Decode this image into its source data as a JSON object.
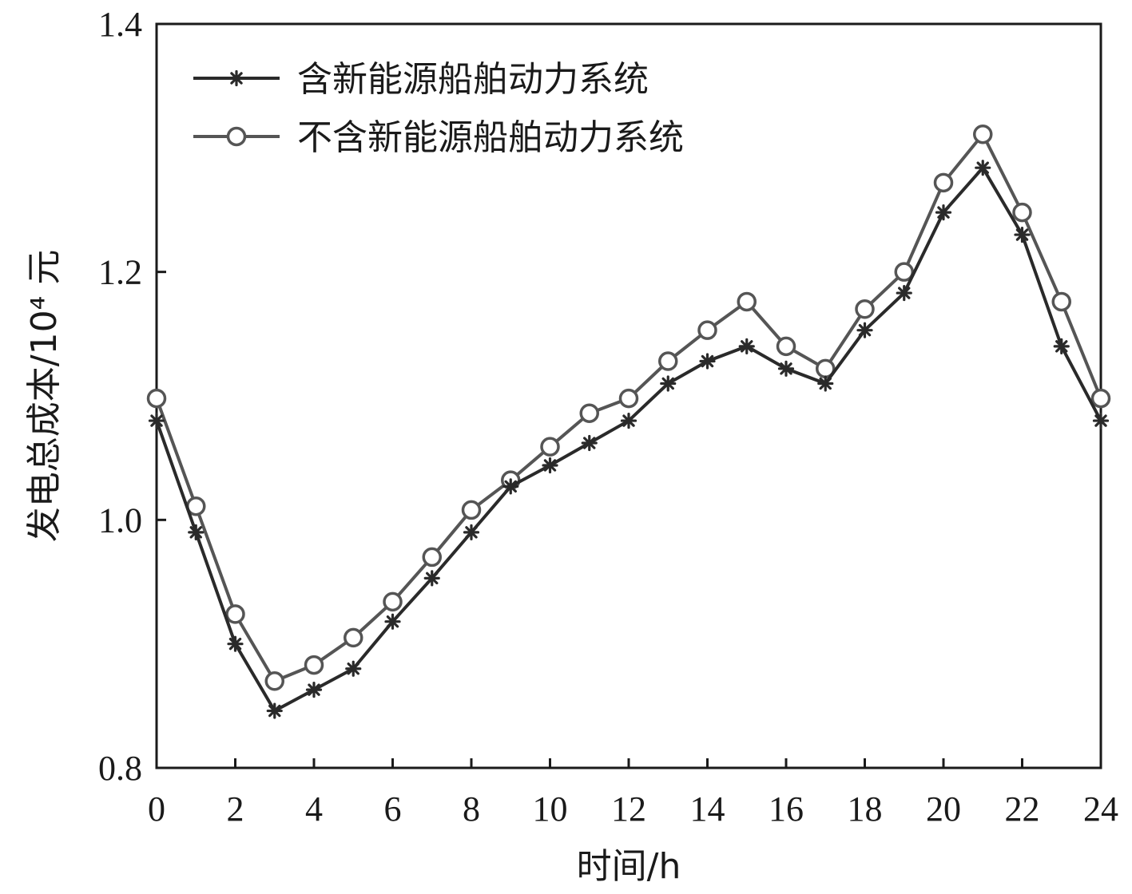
{
  "chart_data": {
    "type": "line",
    "xlabel": "时间/h",
    "ylabel": "发电总成本/10⁴ 元",
    "xlim": [
      0,
      24
    ],
    "ylim": [
      0.8,
      1.4
    ],
    "xticks": [
      "0",
      "2",
      "4",
      "6",
      "8",
      "10",
      "12",
      "14",
      "16",
      "18",
      "20",
      "22",
      "24"
    ],
    "yticks": [
      "0.8",
      "1.0",
      "1.2",
      "1.4"
    ],
    "grid": false,
    "legend_position": "top-left",
    "x": [
      0,
      1,
      2,
      3,
      4,
      5,
      6,
      7,
      8,
      9,
      10,
      11,
      12,
      13,
      14,
      15,
      16,
      17,
      18,
      19,
      20,
      21,
      22,
      23,
      24
    ],
    "series": [
      {
        "name": "含新能源船舶动力系统",
        "marker": "asterisk",
        "color": "#2a2a2a",
        "values": [
          1.08,
          0.99,
          0.9,
          0.846,
          0.863,
          0.88,
          0.918,
          0.953,
          0.99,
          1.027,
          1.044,
          1.062,
          1.08,
          1.11,
          1.128,
          1.14,
          1.122,
          1.11,
          1.153,
          1.183,
          1.248,
          1.284,
          1.23,
          1.14,
          1.08
        ]
      },
      {
        "name": "不含新能源船舶动力系统",
        "marker": "circle",
        "color": "#555555",
        "values": [
          1.098,
          1.011,
          0.924,
          0.87,
          0.883,
          0.905,
          0.934,
          0.97,
          1.008,
          1.032,
          1.059,
          1.086,
          1.098,
          1.128,
          1.153,
          1.176,
          1.14,
          1.122,
          1.17,
          1.2,
          1.272,
          1.311,
          1.248,
          1.176,
          1.098
        ]
      }
    ]
  }
}
